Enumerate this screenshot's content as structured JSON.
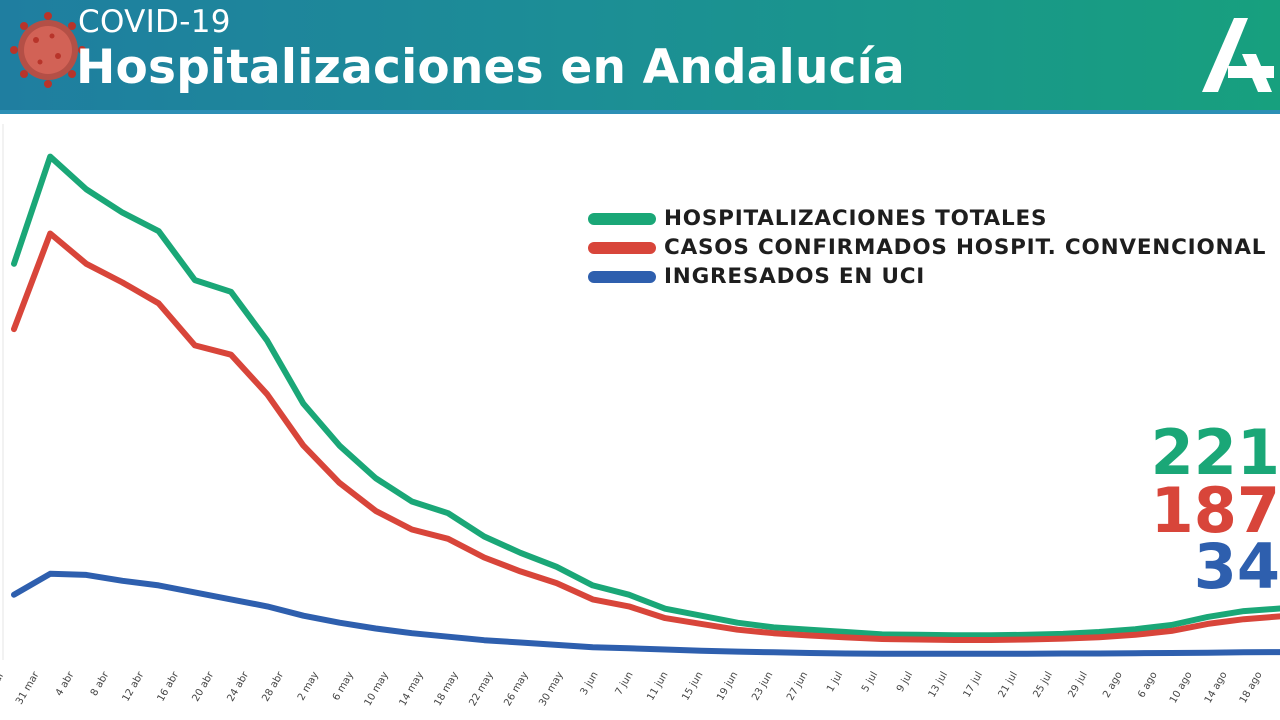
{
  "header": {
    "eyebrow": "COVID-19",
    "title": "Hospitalizaciones en Andalucía",
    "gradient_start": "#1f7ea0",
    "gradient_end": "#17a07e",
    "virus_icon": "coronavirus-icon",
    "logo_icon": "junta-andalucia-logo-icon"
  },
  "legend": [
    {
      "label": "HOSPITALIZACIONES TOTALES",
      "color": "#1aa777"
    },
    {
      "label": "CASOS CONFIRMADOS HOSPIT. CONVENCIONAL",
      "color": "#d8453a"
    },
    {
      "label": "INGRESADOS EN UCI",
      "color": "#2e5fae"
    }
  ],
  "latest_values": [
    {
      "value": "221",
      "color": "#1aa777"
    },
    {
      "value": "187",
      "color": "#d8453a"
    },
    {
      "value": "34",
      "color": "#2e5fae"
    }
  ],
  "chart_data": {
    "type": "line",
    "title": "Hospitalizaciones en Andalucía",
    "grid": false,
    "legend_position": "top-right",
    "x_ticks": [
      "mar",
      "31 mar",
      "4 abr",
      "8 abr",
      "12 abr",
      "16 abr",
      "20 abr",
      "24 abr",
      "28 abr",
      "2 may",
      "6 may",
      "10 may",
      "14 may",
      "18 may",
      "22 may",
      "26 may",
      "30 may",
      "3 jun",
      "7 jun",
      "11 jun",
      "15 jun",
      "19 jun",
      "23 jun",
      "27 jun",
      "1 jul",
      "5 jul",
      "9 jul",
      "13 jul",
      "17 jul",
      "21 jul",
      "25 jul",
      "29 jul",
      "2 ago",
      "6 ago",
      "10 ago",
      "14 ago",
      "18 ago"
    ],
    "y_range": [
      0,
      2300
    ],
    "series": [
      {
        "name": "HOSPITALIZACIONES TOTALES",
        "color": "#1aa777",
        "values": [
          1700,
          2160,
          2020,
          1920,
          1840,
          1630,
          1580,
          1370,
          1100,
          920,
          780,
          680,
          630,
          530,
          460,
          400,
          320,
          280,
          220,
          190,
          160,
          140,
          130,
          120,
          110,
          108,
          106,
          106,
          108,
          112,
          120,
          132,
          150,
          185,
          210,
          221
        ]
      },
      {
        "name": "CASOS CONFIRMADOS HOSPIT. CONVENCIONAL",
        "color": "#d8453a",
        "values": [
          1420,
          1830,
          1700,
          1620,
          1530,
          1350,
          1310,
          1140,
          920,
          760,
          640,
          560,
          520,
          440,
          380,
          330,
          260,
          230,
          180,
          155,
          130,
          115,
          105,
          97,
          90,
          88,
          86,
          86,
          88,
          92,
          98,
          108,
          125,
          155,
          175,
          187
        ]
      },
      {
        "name": "INGRESADOS EN UCI",
        "color": "#2e5fae",
        "values": [
          280,
          370,
          365,
          340,
          320,
          290,
          260,
          230,
          190,
          160,
          135,
          115,
          100,
          85,
          75,
          65,
          55,
          50,
          45,
          40,
          36,
          33,
          30,
          28,
          27,
          27,
          27,
          27,
          27,
          28,
          28,
          29,
          30,
          31,
          33,
          34
        ]
      }
    ]
  }
}
